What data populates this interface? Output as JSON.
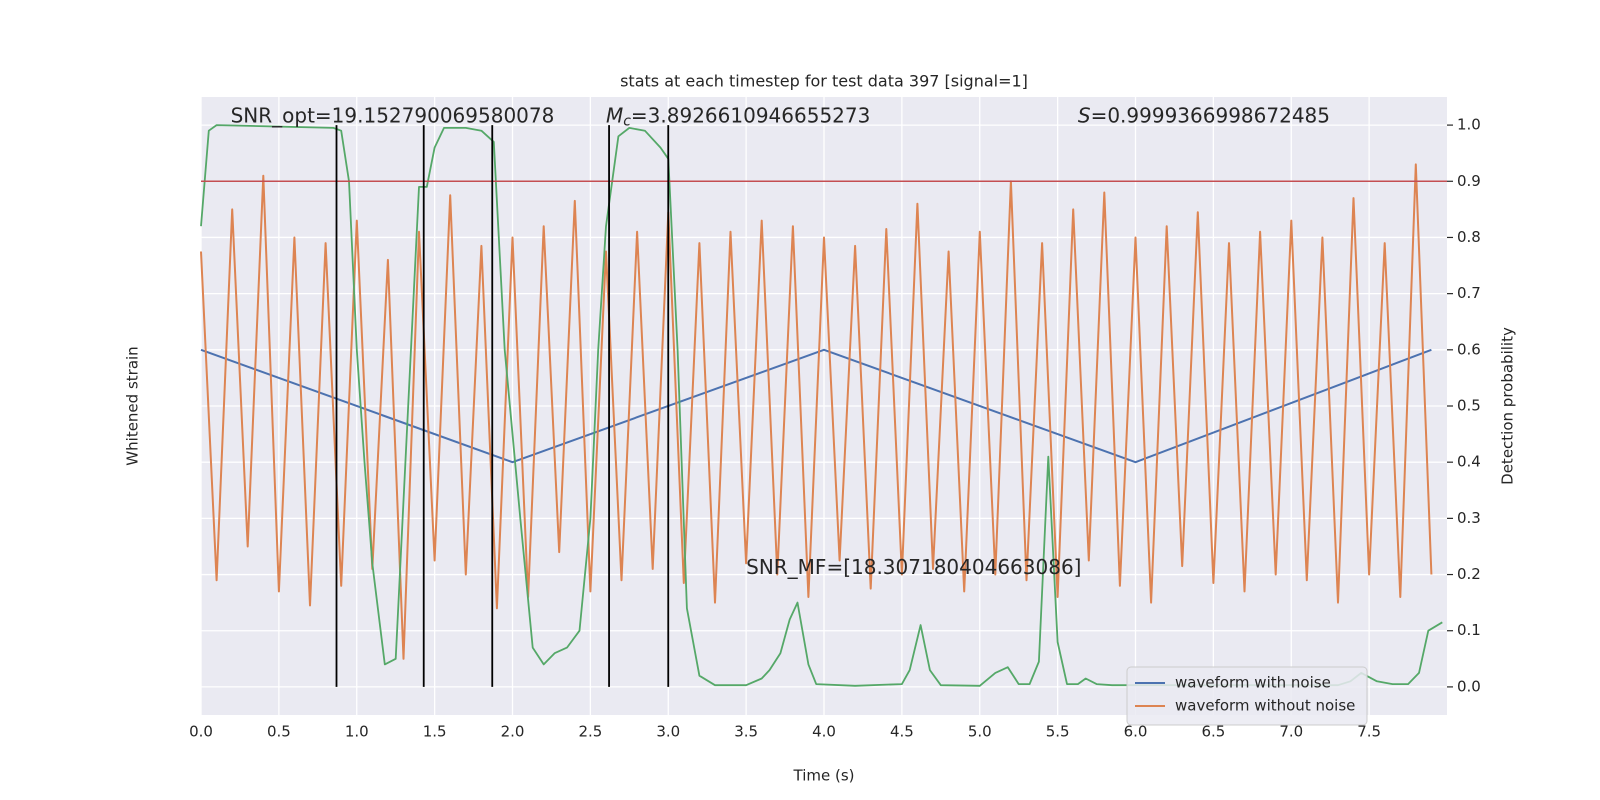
{
  "chart_data": {
    "type": "line",
    "title": "stats at each timestep for test data 397 [signal=1]",
    "xlabel": "Time (s)",
    "ylabel": "Whitened strain",
    "y2label": "Detection probability",
    "xlim": [
      0,
      8
    ],
    "xticks": [
      {
        "value": 0,
        "label": "0.0"
      },
      0.5,
      {
        "value": 1,
        "label": "1.0"
      },
      1.5,
      {
        "value": 2,
        "label": "2.0"
      },
      2.5,
      {
        "value": 3,
        "label": "3.0"
      },
      3.5,
      {
        "value": 4,
        "label": "4.0"
      },
      4.5,
      {
        "value": 5,
        "label": "5.0"
      },
      5.5,
      {
        "value": 6,
        "label": "6.0"
      },
      6.5,
      {
        "value": 7,
        "label": "7.0"
      },
      7.5
    ],
    "ylim": [
      -1.1,
      1.1
    ],
    "y2lim": [
      -0.05,
      1.05
    ],
    "y2ticks": [
      {
        "value": 0,
        "label": "0.0"
      },
      0.1,
      0.2,
      0.3,
      0.4,
      0.5,
      0.6,
      0.7,
      0.8,
      0.9,
      {
        "value": 1,
        "label": "1.0"
      }
    ],
    "grid": true,
    "legend": "lower right",
    "series": [
      {
        "name": "waveform with noise",
        "color": "#4c72b0",
        "x": [
          0,
          2,
          4,
          6,
          7.9
        ],
        "values": [
          0.2,
          -0.2,
          0.2,
          -0.2,
          0.2
        ]
      },
      {
        "name": "waveform without noise",
        "color": "#dd8452",
        "x": [
          0,
          0.1,
          0.2,
          0.3,
          0.4,
          0.5,
          0.6,
          0.7,
          0.8,
          0.9,
          1,
          1.1,
          1.2,
          1.3,
          1.4,
          1.5,
          1.6,
          1.7,
          1.8,
          1.9,
          2,
          2.1,
          2.2,
          2.3,
          2.4,
          2.5,
          2.6,
          2.7,
          2.8,
          2.9,
          3,
          3.1,
          3.2,
          3.3,
          3.4,
          3.5,
          3.6,
          3.7,
          3.8,
          3.9,
          4,
          4.1,
          4.2,
          4.3,
          4.4,
          4.5,
          4.6,
          4.7,
          4.8,
          4.9,
          5,
          5.1,
          5.2,
          5.3,
          5.4,
          5.5,
          5.6,
          5.7,
          5.8,
          5.9,
          6,
          6.1,
          6.2,
          6.3,
          6.4,
          6.5,
          6.6,
          6.7,
          6.8,
          6.9,
          7,
          7.1,
          7.2,
          7.3,
          7.4,
          7.5,
          7.6,
          7.7,
          7.8,
          7.9
        ],
        "values": [
          0.55,
          -0.62,
          0.7,
          -0.5,
          0.82,
          -0.66,
          0.6,
          -0.71,
          0.58,
          -0.64,
          0.66,
          -0.58,
          0.52,
          -0.9,
          0.62,
          -0.55,
          0.75,
          -0.6,
          0.57,
          -0.72,
          0.6,
          -0.68,
          0.64,
          -0.52,
          0.73,
          -0.66,
          0.55,
          -0.62,
          0.62,
          -0.58,
          0.69,
          -0.63,
          0.58,
          -0.7,
          0.62,
          -0.56,
          0.66,
          -0.6,
          0.64,
          -0.68,
          0.6,
          -0.55,
          0.57,
          -0.65,
          0.63,
          -0.6,
          0.72,
          -0.58,
          0.55,
          -0.66,
          0.62,
          -0.6,
          0.8,
          -0.62,
          0.58,
          -0.68,
          0.7,
          -0.55,
          0.76,
          -0.64,
          0.6,
          -0.7,
          0.64,
          -0.57,
          0.69,
          -0.63,
          0.58,
          -0.66,
          0.62,
          -0.6,
          0.66,
          -0.62,
          0.6,
          -0.7,
          0.74,
          -0.6,
          0.58,
          -0.68,
          0.86,
          -0.6
        ]
      },
      {
        "color": "#55a868",
        "axis": "y2",
        "x": [
          0,
          0.05,
          0.1,
          0.85,
          0.9,
          0.95,
          1,
          1.05,
          1.1,
          1.18,
          1.25,
          1.4,
          1.45,
          1.5,
          1.56,
          1.7,
          1.8,
          1.88,
          1.95,
          2.05,
          2.13,
          2.2,
          2.27,
          2.35,
          2.43,
          2.5,
          2.55,
          2.6,
          2.68,
          2.75,
          2.85,
          2.95,
          3,
          3.06,
          3.12,
          3.2,
          3.3,
          3.5,
          3.6,
          3.65,
          3.72,
          3.78,
          3.83,
          3.9,
          3.95,
          4.2,
          4.5,
          4.55,
          4.62,
          4.68,
          4.75,
          5,
          5.1,
          5.18,
          5.25,
          5.32,
          5.38,
          5.44,
          5.5,
          5.56,
          5.63,
          5.68,
          5.75,
          5.85,
          6,
          7.3,
          7.38,
          7.45,
          7.55,
          7.65,
          7.75,
          7.82,
          7.88,
          7.97
        ],
        "values": [
          0.82,
          0.99,
          1,
          0.995,
          0.99,
          0.9,
          0.6,
          0.4,
          0.22,
          0.04,
          0.05,
          0.89,
          0.89,
          0.96,
          0.995,
          0.995,
          0.99,
          0.97,
          0.6,
          0.3,
          0.07,
          0.04,
          0.06,
          0.07,
          0.1,
          0.3,
          0.6,
          0.82,
          0.98,
          0.995,
          0.99,
          0.96,
          0.94,
          0.6,
          0.14,
          0.02,
          0.003,
          0.003,
          0.015,
          0.03,
          0.06,
          0.12,
          0.15,
          0.04,
          0.005,
          0.002,
          0.005,
          0.03,
          0.11,
          0.03,
          0.003,
          0.002,
          0.025,
          0.035,
          0.005,
          0.005,
          0.045,
          0.41,
          0.08,
          0.005,
          0.005,
          0.015,
          0.005,
          0.003,
          0.003,
          0.003,
          0.01,
          0.025,
          0.01,
          0.005,
          0.005,
          0.025,
          0.1,
          0.115
        ]
      }
    ],
    "threshold": {
      "value": 0.9,
      "color": "#c44e52",
      "axis": "y2"
    },
    "vlines": {
      "x": [
        0.87,
        1.43,
        1.87,
        2.62,
        3.0
      ],
      "range": [
        0,
        1
      ],
      "color": "#000000",
      "axis": "y2"
    },
    "annotations": [
      {
        "text": "SNR_opt=19.152790069580078"
      },
      {
        "symbol": "M",
        "subscript": "c",
        "text": "=3.8926610946655273"
      },
      {
        "symbol": "S",
        "text": "=0.9999366998672485"
      },
      {
        "text": "SNR_MF=[18.307180404663086]"
      }
    ]
  }
}
